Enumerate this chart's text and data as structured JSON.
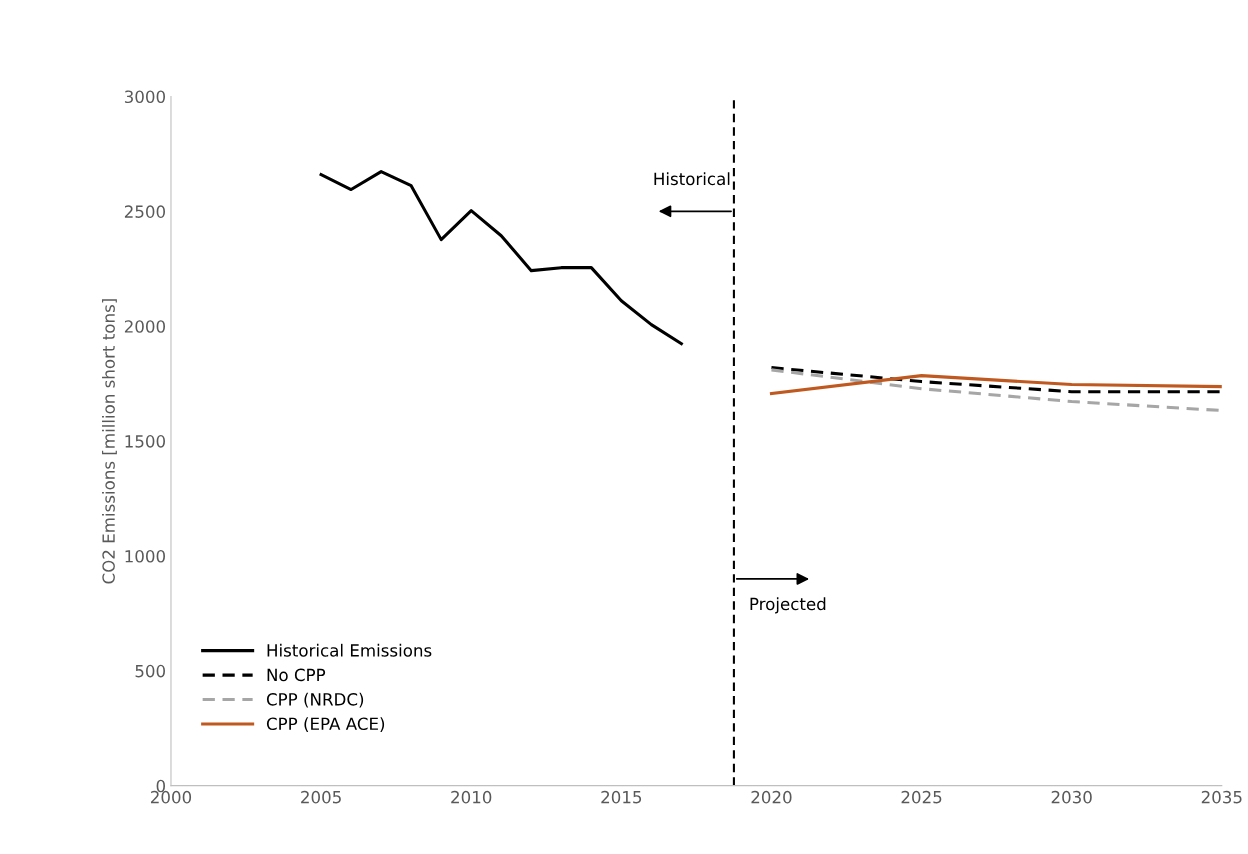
{
  "chart_data": {
    "type": "line",
    "ylabel": "CO2 Emissions [million short tons]",
    "xlim": [
      2000,
      2035
    ],
    "xticks": [
      2000,
      2005,
      2010,
      2015,
      2020,
      2025,
      2030,
      2035
    ],
    "ylim": [
      0,
      3000
    ],
    "yticks": [
      0,
      500,
      1000,
      1500,
      2000,
      2500,
      3000
    ],
    "grid": false,
    "legend": "lower left",
    "marker": "none",
    "ref_lines": [
      {
        "axis": "x",
        "value": 2018.75,
        "color": "#000000",
        "line_style": "dashed"
      }
    ],
    "annotations": [
      "Historical",
      "Projected"
    ],
    "series": [
      {
        "name": "Historical Emissions",
        "color": "#000000",
        "line_style": "solid",
        "x": [
          2005,
          2006,
          2007,
          2008,
          2009,
          2010,
          2011,
          2012,
          2013,
          2014,
          2015,
          2016,
          2017
        ],
        "values": [
          2660,
          2595,
          2673,
          2612,
          2377,
          2503,
          2394,
          2242,
          2255,
          2255,
          2111,
          2007,
          1924
        ]
      },
      {
        "name": "No CPP",
        "color": "#000000",
        "line_style": "dashed",
        "x": [
          2020,
          2025,
          2030,
          2035
        ],
        "values": [
          1820,
          1759,
          1715,
          1715
        ]
      },
      {
        "name": "CPP (NRDC)",
        "color": "#a6a6a6",
        "line_style": "dashed",
        "x": [
          2020,
          2025,
          2030,
          2035
        ],
        "values": [
          1810,
          1728,
          1672,
          1633
        ]
      },
      {
        "name": "CPP (EPA ACE)",
        "color": "#c0591f",
        "line_style": "solid",
        "x": [
          2020,
          2025,
          2030,
          2035
        ],
        "values": [
          1707,
          1785,
          1746,
          1737
        ]
      }
    ]
  }
}
